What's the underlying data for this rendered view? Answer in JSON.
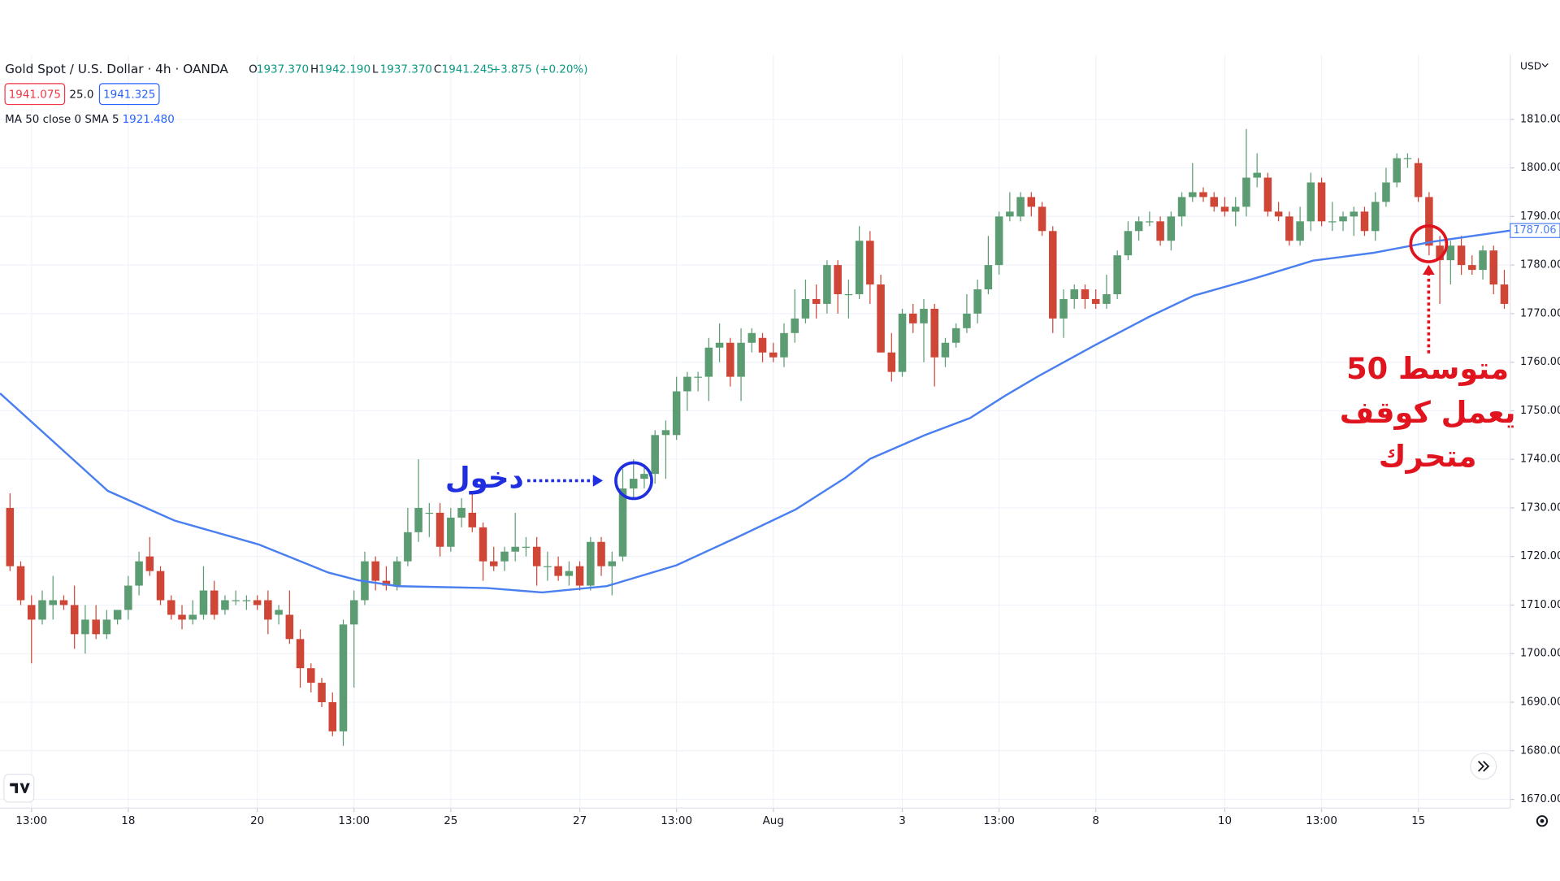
{
  "header": {
    "symbol": "Gold Spot / U.S. Dollar · 4h · OANDA",
    "ohlc": [
      {
        "label": "O",
        "value": "1937.370"
      },
      {
        "label": "H",
        "value": "1942.190"
      },
      {
        "label": "L",
        "value": "1937.370"
      },
      {
        "label": "C",
        "value": "1941.245"
      }
    ],
    "change": "+3.875 (+0.20%)",
    "bid": "1941.075",
    "spread": "25.0",
    "ask": "1941.325"
  },
  "chart_data": {
    "type": "candlestick",
    "currency": "USD",
    "up_color": "#5b9c72",
    "down_color": "#cf4536",
    "xlim": [
      -0.93,
      139.55
    ],
    "ylim": [
      1668.2,
      1823.3
    ],
    "grid": true,
    "xticks": [
      {
        "value": 2,
        "label": "13:00"
      },
      {
        "value": 11,
        "label": "18"
      },
      {
        "value": 23,
        "label": "20"
      },
      {
        "value": 32,
        "label": "13:00"
      },
      {
        "value": 41,
        "label": "25"
      },
      {
        "value": 53,
        "label": "27"
      },
      {
        "value": 62,
        "label": "13:00"
      },
      {
        "value": 71,
        "label": "Aug"
      },
      {
        "value": 83,
        "label": "3"
      },
      {
        "value": 92,
        "label": "13:00"
      },
      {
        "value": 101,
        "label": "8"
      },
      {
        "value": 113,
        "label": "10"
      },
      {
        "value": 122,
        "label": "13:00"
      },
      {
        "value": 131,
        "label": "15"
      }
    ],
    "yticks": [
      {
        "value": 1670,
        "label": "1670.00"
      },
      {
        "value": 1680,
        "label": "1680.00"
      },
      {
        "value": 1690,
        "label": "1690.00"
      },
      {
        "value": 1700,
        "label": "1700.00"
      },
      {
        "value": 1710,
        "label": "1710.00"
      },
      {
        "value": 1720,
        "label": "1720.00"
      },
      {
        "value": 1730,
        "label": "1730.00"
      },
      {
        "value": 1740,
        "label": "1740.00"
      },
      {
        "value": 1750,
        "label": "1750.00"
      },
      {
        "value": 1760,
        "label": "1760.00"
      },
      {
        "value": 1770,
        "label": "1770.00"
      },
      {
        "value": 1780,
        "label": "1780.00"
      },
      {
        "value": 1790,
        "label": "1790.00"
      },
      {
        "value": 1800,
        "label": "1800.00"
      },
      {
        "value": 1810,
        "label": "1810.00"
      }
    ],
    "open": [
      1730,
      1718,
      1710,
      1707,
      1710,
      1711,
      1710,
      1704,
      1707,
      1704,
      1707,
      1709,
      1714,
      1720,
      1717,
      1711,
      1708,
      1707,
      1708,
      1713,
      1709,
      1711,
      1711,
      1711,
      1711,
      1708,
      1708,
      1703,
      1697,
      1694,
      1690,
      1684,
      1706,
      1711,
      1719,
      1715,
      1714,
      1719,
      1725,
      1729,
      1729,
      1722,
      1728,
      1729,
      1726,
      1719,
      1719,
      1721,
      1722,
      1722,
      1718,
      1718,
      1716,
      1718,
      1714,
      1723,
      1718,
      1720,
      1734,
      1736,
      1737,
      1745,
      1745,
      1754,
      1757,
      1757,
      1763,
      1764,
      1757,
      1764,
      1765,
      1762,
      1761,
      1766,
      1769,
      1773,
      1772,
      1780,
      1774,
      1774,
      1785,
      1776,
      1762,
      1758,
      1770,
      1768,
      1771,
      1761,
      1764,
      1767,
      1770,
      1775,
      1780,
      1790,
      1790,
      1794,
      1792,
      1787,
      1769,
      1773,
      1775,
      1773,
      1772,
      1774,
      1782,
      1787,
      1789,
      1789,
      1785,
      1790,
      1794,
      1795,
      1794,
      1792,
      1791,
      1792,
      1798,
      1798,
      1791,
      1790,
      1785,
      1789,
      1797,
      1789,
      1789,
      1790,
      1791,
      1787,
      1793,
      1797,
      1802,
      1801,
      1794,
      1784,
      1781,
      1784,
      1780,
      1779,
      1783,
      1776
    ],
    "high": [
      1733,
      1719,
      1712,
      1713,
      1716,
      1712,
      1714,
      1710,
      1710,
      1709,
      1709,
      1716,
      1721,
      1724,
      1718,
      1712,
      1710,
      1711,
      1718,
      1715,
      1712,
      1713,
      1712,
      1712,
      1713,
      1710,
      1713,
      1705,
      1698,
      1695,
      1692,
      1707,
      1713,
      1721,
      1720,
      1718,
      1720,
      1730,
      1740,
      1731,
      1731,
      1730,
      1732,
      1733,
      1727,
      1722,
      1722,
      1729,
      1724,
      1724,
      1721,
      1720,
      1719,
      1719,
      1724,
      1724,
      1721,
      1738,
      1740,
      1739,
      1746,
      1748,
      1757,
      1758,
      1758,
      1765,
      1768,
      1765,
      1767,
      1767,
      1766,
      1764,
      1768,
      1775,
      1777,
      1776,
      1781,
      1781,
      1777,
      1788,
      1787,
      1778,
      1766,
      1771,
      1772,
      1773,
      1772,
      1765,
      1768,
      1774,
      1777,
      1786,
      1791,
      1795,
      1795,
      1795,
      1793,
      1788,
      1775,
      1776,
      1776,
      1775,
      1778,
      1783,
      1789,
      1790,
      1791,
      1790,
      1791,
      1795,
      1801,
      1796,
      1795,
      1794,
      1794,
      1808,
      1803,
      1799,
      1793,
      1791,
      1792,
      1799,
      1798,
      1793,
      1791,
      1792,
      1792,
      1795,
      1800,
      1803,
      1803,
      1802,
      1795,
      1786,
      1785,
      1786,
      1782,
      1784,
      1784,
      1779
    ],
    "low": [
      1717,
      1710,
      1698,
      1706,
      1707,
      1709,
      1701,
      1700,
      1703,
      1703,
      1706,
      1707,
      1712,
      1716,
      1710,
      1707,
      1705,
      1706,
      1707,
      1707,
      1708,
      1710,
      1709,
      1709,
      1704,
      1706,
      1702,
      1693,
      1692,
      1689,
      1683,
      1681,
      1693,
      1710,
      1713,
      1713,
      1713,
      1718,
      1723,
      1724,
      1720,
      1721,
      1726,
      1725,
      1715,
      1717,
      1717,
      1719,
      1720,
      1714,
      1715,
      1715,
      1714,
      1713,
      1713,
      1716,
      1712,
      1719,
      1732,
      1734,
      1735,
      1736,
      1744,
      1750,
      1754,
      1752,
      1760,
      1755,
      1752,
      1762,
      1760,
      1760,
      1759,
      1764,
      1768,
      1769,
      1770,
      1770,
      1769,
      1773,
      1772,
      1762,
      1756,
      1757,
      1766,
      1760,
      1755,
      1759,
      1763,
      1766,
      1768,
      1774,
      1778,
      1789,
      1789,
      1790,
      1786,
      1766,
      1765,
      1771,
      1771,
      1771,
      1771,
      1773,
      1781,
      1785,
      1788,
      1784,
      1783,
      1788,
      1793,
      1793,
      1791,
      1790,
      1788,
      1790,
      1796,
      1790,
      1789,
      1784,
      1784,
      1787,
      1788,
      1787,
      1787,
      1786,
      1786,
      1785,
      1792,
      1796,
      1800,
      1793,
      1782,
      1772,
      1776,
      1778,
      1778,
      1777,
      1774,
      1771
    ],
    "close": [
      1718,
      1711,
      1707,
      1711,
      1711,
      1710,
      1704,
      1707,
      1704,
      1707,
      1709,
      1714,
      1719,
      1717,
      1711,
      1708,
      1707,
      1708,
      1713,
      1708,
      1711,
      1711,
      1711,
      1710,
      1707,
      1709,
      1703,
      1697,
      1694,
      1690,
      1684,
      1706,
      1711,
      1719,
      1715,
      1714,
      1719,
      1725,
      1730,
      1729,
      1722,
      1728,
      1730,
      1726,
      1719,
      1718,
      1721,
      1722,
      1722,
      1718,
      1718,
      1716,
      1717,
      1714,
      1723,
      1718,
      1719,
      1734,
      1736,
      1737,
      1745,
      1746,
      1754,
      1757,
      1757,
      1763,
      1764,
      1757,
      1764,
      1766,
      1762,
      1761,
      1766,
      1769,
      1773,
      1772,
      1780,
      1774,
      1774,
      1785,
      1776,
      1762,
      1758,
      1770,
      1768,
      1771,
      1761,
      1764,
      1767,
      1770,
      1775,
      1780,
      1790,
      1791,
      1794,
      1792,
      1787,
      1769,
      1773,
      1775,
      1773,
      1772,
      1774,
      1782,
      1787,
      1789,
      1789,
      1785,
      1790,
      1794,
      1795,
      1794,
      1792,
      1791,
      1792,
      1798,
      1799,
      1791,
      1790,
      1785,
      1789,
      1797,
      1789,
      1789,
      1790,
      1791,
      1787,
      1793,
      1797,
      1802,
      1802,
      1794,
      1784,
      1781,
      1784,
      1780,
      1779,
      1783,
      1776,
      1772
    ],
    "ma": {
      "name": "MA 50 close 0 SMA 5",
      "legend_value": "1921.480",
      "color": "#4a7ff0",
      "last_label": "1787.06",
      "x": [
        -0.93,
        9.1,
        15.3,
        23.1,
        29.6,
        32.4,
        36.1,
        44.4,
        49.5,
        55.5,
        62,
        67.6,
        73.1,
        77.7,
        80,
        85.1,
        89.3,
        92.5,
        95.8,
        100.9,
        106,
        110.1,
        115.7,
        121.2,
        126.8,
        132.3,
        139.55
      ],
      "values": [
        1753.6,
        1733.5,
        1727.4,
        1722.5,
        1716.7,
        1715.1,
        1713.9,
        1713.5,
        1712.6,
        1713.9,
        1718.2,
        1723.9,
        1729.7,
        1736.2,
        1740.1,
        1745,
        1748.5,
        1753,
        1757.3,
        1763.5,
        1769.4,
        1773.7,
        1777.2,
        1780.9,
        1782.5,
        1784.8,
        1787.1
      ]
    },
    "annotations": {
      "entry": "دخول",
      "note": [
        "متوسط 50",
        "يعمل كوقف",
        "متحرك"
      ]
    }
  }
}
